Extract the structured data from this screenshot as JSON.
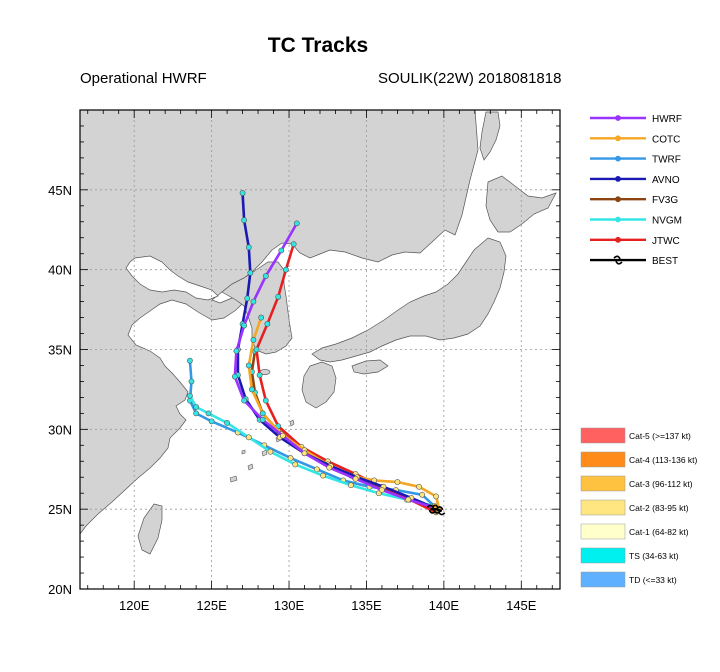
{
  "header": {
    "title": "TC Tracks",
    "model": "Operational HWRF",
    "storm": "SOULIK(22W) 2018081818"
  },
  "map": {
    "lon_range": [
      116.5,
      147.5
    ],
    "lat_range": [
      20,
      50
    ],
    "x_ticks": [
      {
        "value": 120,
        "label": "120E"
      },
      {
        "value": 125,
        "label": "125E"
      },
      {
        "value": 130,
        "label": "130E"
      },
      {
        "value": 135,
        "label": "135E"
      },
      {
        "value": 140,
        "label": "140E"
      },
      {
        "value": 145,
        "label": "145E"
      }
    ],
    "y_ticks": [
      {
        "value": 20,
        "label": "20N"
      },
      {
        "value": 25,
        "label": "25N"
      },
      {
        "value": 30,
        "label": "30N"
      },
      {
        "value": 35,
        "label": "35N"
      },
      {
        "value": 40,
        "label": "40N"
      },
      {
        "value": 45,
        "label": "45N"
      }
    ],
    "land_color": "#d3d3d3",
    "sea_color": "#ffffff",
    "grid": true
  },
  "legend": [
    {
      "name": "HWRF",
      "color": "#9933ff"
    },
    {
      "name": "COTC",
      "color": "#f5a623"
    },
    {
      "name": "TWRF",
      "color": "#3399e6"
    },
    {
      "name": "AVNO",
      "color": "#1a1ab3"
    },
    {
      "name": "FV3G",
      "color": "#8b4513"
    },
    {
      "name": "NVGM",
      "color": "#33e6e6"
    },
    {
      "name": "JTWC",
      "color": "#e62020"
    },
    {
      "name": "BEST",
      "color": "#000000"
    }
  ],
  "categories": [
    {
      "label": "Cat-5 (>=137 kt)",
      "color": "#ff6060"
    },
    {
      "label": "Cat-4 (113-136 kt)",
      "color": "#ff8c1a"
    },
    {
      "label": "Cat-3 (96-112 kt)",
      "color": "#ffc140"
    },
    {
      "label": "Cat-2 (83-95 kt)",
      "color": "#ffe680"
    },
    {
      "label": "Cat-1 (64-82 kt)",
      "color": "#ffffcc"
    },
    {
      "label": "TS (34-63 kt)",
      "color": "#00f0f0"
    },
    {
      "label": "TD (<=33 kt)",
      "color": "#5fb0ff"
    }
  ],
  "tracks": [
    {
      "name": "TWRF",
      "color": "#3399e6",
      "points": [
        [
          139.6,
          25.0
        ],
        [
          138.6,
          25.9
        ],
        [
          136.9,
          26.2
        ],
        [
          135.2,
          26.4
        ],
        [
          133.5,
          26.8
        ],
        [
          131.8,
          27.5
        ],
        [
          130.1,
          28.2
        ],
        [
          128.4,
          29.0
        ],
        [
          126.7,
          29.8
        ],
        [
          125.0,
          30.5
        ],
        [
          124.0,
          31.0
        ],
        [
          123.6,
          31.8
        ],
        [
          123.7,
          33.0
        ],
        [
          123.6,
          34.3
        ]
      ]
    },
    {
      "name": "NVGM",
      "color": "#33e6e6",
      "points": [
        [
          139.4,
          25.2
        ],
        [
          137.6,
          25.6
        ],
        [
          135.8,
          26.0
        ],
        [
          134.0,
          26.5
        ],
        [
          132.2,
          27.1
        ],
        [
          130.4,
          27.8
        ],
        [
          128.8,
          28.6
        ],
        [
          127.4,
          29.5
        ],
        [
          126.0,
          30.4
        ],
        [
          124.8,
          31.0
        ],
        [
          124.0,
          31.4
        ],
        [
          123.6,
          32.1
        ]
      ]
    },
    {
      "name": "FV3G",
      "color": "#8b4513",
      "points": [
        [
          139.5,
          25.0
        ],
        [
          137.8,
          25.6
        ],
        [
          136.0,
          26.3
        ],
        [
          134.2,
          27.0
        ],
        [
          132.5,
          27.8
        ],
        [
          130.8,
          28.8
        ],
        [
          129.3,
          29.9
        ],
        [
          128.3,
          31.0
        ],
        [
          127.8,
          32.3
        ],
        [
          127.6,
          33.6
        ],
        [
          127.8,
          34.9
        ]
      ]
    },
    {
      "name": "JTWC",
      "color": "#e62020",
      "points": [
        [
          139.5,
          24.8
        ],
        [
          137.8,
          25.6
        ],
        [
          136.0,
          26.4
        ],
        [
          134.3,
          27.2
        ],
        [
          132.5,
          28.0
        ],
        [
          130.8,
          28.9
        ],
        [
          129.3,
          30.2
        ],
        [
          128.5,
          31.8
        ],
        [
          128.1,
          33.4
        ],
        [
          127.9,
          35.0
        ],
        [
          128.6,
          36.6
        ],
        [
          129.3,
          38.3
        ],
        [
          129.8,
          40.0
        ],
        [
          130.3,
          41.6
        ]
      ]
    },
    {
      "name": "COTC",
      "color": "#f5a623",
      "points": [
        [
          139.7,
          25.0
        ],
        [
          139.5,
          25.8
        ],
        [
          138.4,
          26.4
        ],
        [
          137.0,
          26.7
        ],
        [
          135.5,
          26.8
        ],
        [
          134.0,
          27.1
        ],
        [
          132.5,
          27.8
        ],
        [
          131.0,
          28.7
        ],
        [
          129.5,
          29.7
        ],
        [
          128.3,
          31.0
        ],
        [
          127.6,
          32.5
        ],
        [
          127.4,
          34.0
        ],
        [
          127.7,
          35.6
        ],
        [
          128.2,
          37.0
        ]
      ]
    },
    {
      "name": "AVNO",
      "color": "#1a1ab3",
      "points": [
        [
          139.6,
          25.0
        ],
        [
          137.9,
          25.7
        ],
        [
          136.1,
          26.4
        ],
        [
          134.4,
          27.0
        ],
        [
          132.7,
          27.7
        ],
        [
          131.0,
          28.5
        ],
        [
          129.4,
          29.5
        ],
        [
          128.1,
          30.6
        ],
        [
          127.2,
          31.9
        ],
        [
          126.7,
          33.4
        ],
        [
          126.7,
          35.0
        ],
        [
          127.0,
          36.6
        ],
        [
          127.3,
          38.2
        ],
        [
          127.5,
          39.8
        ],
        [
          127.4,
          41.4
        ],
        [
          127.1,
          43.1
        ],
        [
          127.0,
          44.8
        ]
      ]
    },
    {
      "name": "HWRF",
      "color": "#9933ff",
      "points": [
        [
          139.4,
          25.1
        ],
        [
          137.7,
          25.6
        ],
        [
          136.0,
          26.2
        ],
        [
          134.3,
          26.9
        ],
        [
          132.6,
          27.6
        ],
        [
          131.0,
          28.5
        ],
        [
          129.6,
          29.6
        ],
        [
          128.3,
          30.6
        ],
        [
          127.1,
          31.8
        ],
        [
          126.5,
          33.3
        ],
        [
          126.6,
          34.9
        ],
        [
          127.1,
          36.5
        ],
        [
          127.7,
          38.0
        ],
        [
          128.5,
          39.6
        ],
        [
          129.5,
          41.2
        ],
        [
          130.5,
          42.9
        ]
      ]
    },
    {
      "name": "BEST",
      "color": "#000000",
      "points": [
        [
          139.8,
          24.9
        ],
        [
          139.5,
          25.0
        ],
        [
          139.2,
          25.0
        ]
      ]
    }
  ]
}
